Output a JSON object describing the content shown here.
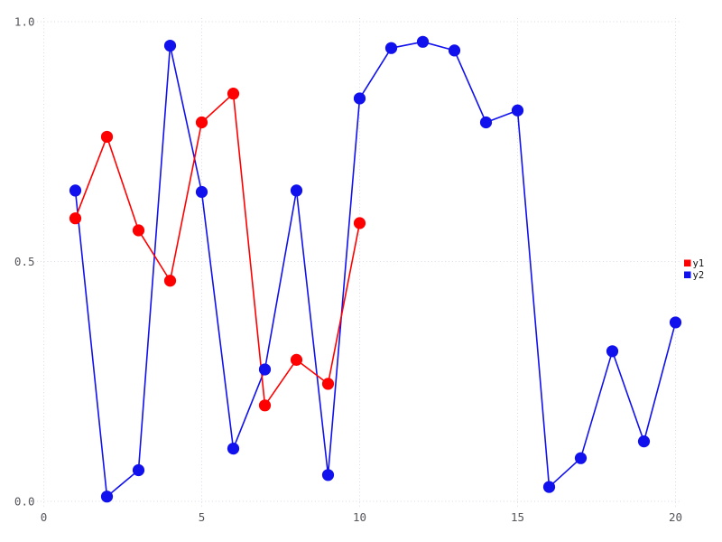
{
  "page": {
    "background": "#ffffff"
  },
  "chart_data": {
    "type": "line",
    "title": "",
    "xlabel": "",
    "ylabel": "",
    "xlim": [
      0,
      20
    ],
    "ylim": [
      0.0,
      1.0
    ],
    "grid": true,
    "marker": "circle",
    "xticks": {
      "values": [
        0,
        5,
        10,
        15,
        20
      ],
      "labels": [
        "0",
        "5",
        "10",
        "15",
        "20"
      ]
    },
    "yticks": {
      "values": [
        0.0,
        0.5,
        1.0
      ],
      "labels": [
        "0.0",
        "0.5",
        "1.0"
      ]
    },
    "legend": {
      "position": "right-middle",
      "entries": [
        "y1",
        "y2"
      ]
    },
    "series": [
      {
        "name": "y1",
        "color": "#ff0000",
        "x": [
          1,
          2,
          3,
          4,
          5,
          6,
          7,
          8,
          9,
          10
        ],
        "values": [
          0.59,
          0.76,
          0.565,
          0.46,
          0.79,
          0.85,
          0.2,
          0.295,
          0.245,
          0.58
        ]
      },
      {
        "name": "y2",
        "color": "#1111ee",
        "x": [
          1,
          2,
          3,
          4,
          5,
          6,
          7,
          8,
          9,
          10,
          11,
          12,
          13,
          14,
          15,
          16,
          17,
          18,
          19,
          20
        ],
        "values": [
          0.648,
          0.01,
          0.065,
          0.95,
          0.645,
          0.11,
          0.275,
          0.648,
          0.055,
          0.84,
          0.945,
          0.958,
          0.94,
          0.79,
          0.815,
          0.03,
          0.09,
          0.313,
          0.125,
          0.373
        ]
      }
    ],
    "style": {
      "grid_color": "#dadae4",
      "tick_label_color": "#55555c",
      "legend_text_color": "#101010",
      "background": "#ffffff",
      "marker_radius": 6.6
    }
  }
}
